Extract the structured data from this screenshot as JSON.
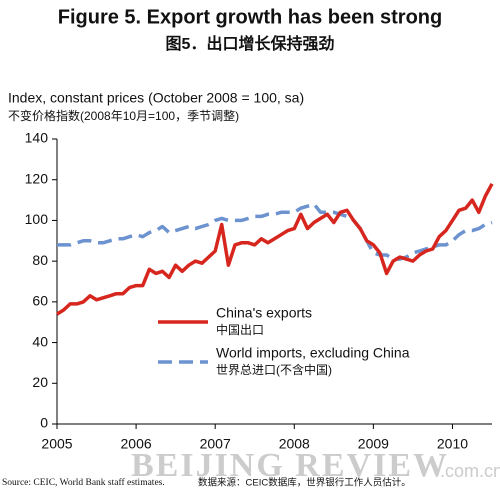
{
  "chart_data": {
    "type": "line",
    "title": "Figure 5. Export growth has been strong",
    "subtitle": "图5．出口增长保持强劲",
    "y_label": "Index, constant prices (October 2008 = 100, sa)",
    "y_label_cn": "不变价格指数(2008年10月=100，季节调整)",
    "source": "Source: CEIC, World Bank staff estimates.",
    "source_cn": "数据来源：CEIC数据库，世界银行工作人员估计。",
    "watermark": "BEIJING REVIEW",
    "watermark_suffix": ".com.cn",
    "x": [
      2005,
      2005.083,
      2005.167,
      2005.25,
      2005.333,
      2005.417,
      2005.5,
      2005.583,
      2005.667,
      2005.75,
      2005.833,
      2005.917,
      2006,
      2006.083,
      2006.167,
      2006.25,
      2006.333,
      2006.417,
      2006.5,
      2006.583,
      2006.667,
      2006.75,
      2006.833,
      2006.917,
      2007,
      2007.083,
      2007.167,
      2007.25,
      2007.333,
      2007.417,
      2007.5,
      2007.583,
      2007.667,
      2007.75,
      2007.833,
      2007.917,
      2008,
      2008.083,
      2008.167,
      2008.25,
      2008.333,
      2008.417,
      2008.5,
      2008.583,
      2008.667,
      2008.75,
      2008.833,
      2008.917,
      2009,
      2009.083,
      2009.167,
      2009.25,
      2009.333,
      2009.417,
      2009.5,
      2009.583,
      2009.667,
      2009.75,
      2009.833,
      2009.917,
      2010,
      2010.083,
      2010.167,
      2010.25,
      2010.333,
      2010.417,
      2010.5
    ],
    "series": [
      {
        "name": "China's exports",
        "name_cn": "中国出口",
        "color": "#d7261e",
        "dash": false,
        "values": [
          54,
          56,
          59,
          59,
          60,
          63,
          61,
          62,
          63,
          64,
          64,
          67,
          68,
          68,
          76,
          74,
          75,
          72,
          78,
          75,
          78,
          80,
          79,
          82,
          85,
          98,
          78,
          88,
          89,
          89,
          88,
          91,
          89,
          91,
          93,
          95,
          96,
          103,
          96,
          99,
          101,
          103,
          99,
          104,
          105,
          100,
          96,
          90,
          88,
          84,
          74,
          80,
          82,
          81,
          80,
          83,
          85,
          86,
          92,
          95,
          100,
          105,
          106,
          110,
          104,
          112,
          118
        ]
      },
      {
        "name": "World imports, excluding China",
        "name_cn": "世界总进口(不含中国)",
        "color": "#6c93cf",
        "dash": true,
        "values": [
          88,
          88,
          88,
          89,
          90,
          90,
          89,
          89,
          90,
          91,
          91,
          92,
          93,
          92,
          94,
          95,
          97,
          94,
          95,
          96,
          97,
          96,
          97,
          98,
          100,
          101,
          100,
          100,
          100,
          101,
          102,
          102,
          103,
          103,
          104,
          104,
          104,
          106,
          107,
          108,
          104,
          104,
          104,
          103,
          102,
          100,
          96,
          90,
          84,
          83,
          83,
          81,
          81,
          82,
          84,
          85,
          86,
          87,
          88,
          88,
          90,
          93,
          95,
          95,
          96,
          98,
          99
        ]
      }
    ],
    "xlim": [
      2005,
      2010.5
    ],
    "xticks": [
      2005,
      2006,
      2007,
      2008,
      2009,
      2010
    ],
    "ylim": [
      0,
      140
    ],
    "yticks": [
      0,
      20,
      40,
      60,
      80,
      100,
      120,
      140
    ],
    "grid": false
  }
}
